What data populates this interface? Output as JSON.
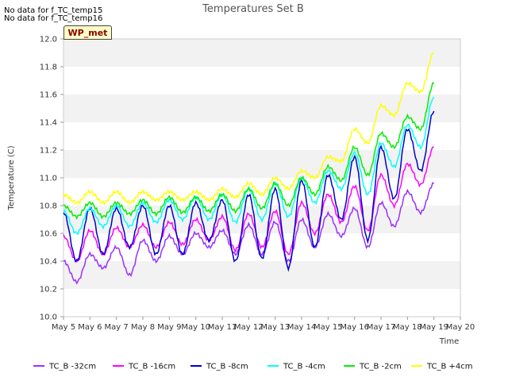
{
  "notes": [
    "No data for f_TC_temp15",
    "No data for f_TC_temp16"
  ],
  "badge": "WP_met",
  "chart_data": {
    "type": "line",
    "title": "Temperatures Set B",
    "xlabel": "Time",
    "ylabel": "Temperature (C)",
    "xlim": [
      "May 5",
      "May 20"
    ],
    "ylim": [
      10.0,
      12.0
    ],
    "xticks": [
      "May 5",
      "May 6",
      "May 7",
      "May 8",
      "May 9",
      "May 10",
      "May 11",
      "May 12",
      "May 13",
      "May 14",
      "May 15",
      "May 16",
      "May 17",
      "May 18",
      "May 19",
      "May 20"
    ],
    "yticks": [
      "10.0",
      "10.2",
      "10.4",
      "10.6",
      "10.8",
      "11.0",
      "11.2",
      "11.4",
      "11.6",
      "11.8",
      "12.0"
    ],
    "grid": "horizontal bands",
    "legend_position": "bottom",
    "x": [
      5.0,
      5.5,
      6.0,
      6.5,
      7.0,
      7.5,
      8.0,
      8.5,
      9.0,
      9.5,
      10.0,
      10.5,
      11.0,
      11.5,
      12.0,
      12.5,
      13.0,
      13.5,
      14.0,
      14.5,
      15.0,
      15.5,
      16.0,
      16.5,
      17.0,
      17.5,
      18.0,
      18.5,
      19.0
    ],
    "series": [
      {
        "name": "TC_B -32cm",
        "color": "#9b30ff",
        "values": [
          10.4,
          10.25,
          10.45,
          10.35,
          10.5,
          10.3,
          10.55,
          10.4,
          10.58,
          10.45,
          10.6,
          10.5,
          10.62,
          10.45,
          10.66,
          10.45,
          10.68,
          10.4,
          10.7,
          10.5,
          10.74,
          10.58,
          10.78,
          10.5,
          10.82,
          10.65,
          10.9,
          10.75,
          10.96
        ]
      },
      {
        "name": "TC_B -16cm",
        "color": "#ff00ff",
        "values": [
          10.58,
          10.4,
          10.62,
          10.45,
          10.64,
          10.5,
          10.66,
          10.5,
          10.68,
          10.52,
          10.7,
          10.55,
          10.72,
          10.48,
          10.74,
          10.5,
          10.76,
          10.45,
          10.82,
          10.6,
          10.88,
          10.68,
          10.94,
          10.62,
          11.02,
          10.8,
          11.1,
          10.95,
          11.22
        ]
      },
      {
        "name": "TC_B -8cm",
        "color": "#0000cd",
        "values": [
          10.75,
          10.4,
          10.78,
          10.45,
          10.78,
          10.5,
          10.8,
          10.45,
          10.8,
          10.45,
          10.82,
          10.55,
          10.84,
          10.4,
          10.88,
          10.42,
          10.92,
          10.35,
          10.98,
          10.5,
          11.02,
          10.7,
          11.15,
          10.55,
          11.22,
          10.85,
          11.35,
          11.05,
          11.48
        ]
      },
      {
        "name": "TC_B -4cm",
        "color": "#00ffff",
        "values": [
          10.76,
          10.6,
          10.78,
          10.65,
          10.8,
          10.65,
          10.82,
          10.68,
          10.84,
          10.7,
          10.86,
          10.7,
          10.88,
          10.68,
          10.92,
          10.7,
          10.96,
          10.72,
          11.0,
          10.82,
          11.05,
          10.92,
          11.18,
          10.88,
          11.25,
          11.08,
          11.38,
          11.22,
          11.58
        ]
      },
      {
        "name": "TC_B -2cm",
        "color": "#00ee00",
        "values": [
          10.8,
          10.72,
          10.82,
          10.72,
          10.82,
          10.74,
          10.84,
          10.74,
          10.86,
          10.75,
          10.86,
          10.76,
          10.88,
          10.76,
          10.92,
          10.78,
          10.96,
          10.8,
          11.0,
          10.88,
          11.08,
          10.98,
          11.22,
          11.02,
          11.32,
          11.22,
          11.44,
          11.35,
          11.68
        ]
      },
      {
        "name": "TC_B +4cm",
        "color": "#ffff00",
        "values": [
          10.88,
          10.82,
          10.9,
          10.82,
          10.9,
          10.82,
          10.9,
          10.84,
          10.9,
          10.84,
          10.9,
          10.84,
          10.92,
          10.86,
          10.96,
          10.88,
          11.0,
          10.92,
          11.05,
          11.0,
          11.15,
          11.12,
          11.35,
          11.25,
          11.52,
          11.45,
          11.68,
          11.62,
          11.9
        ]
      }
    ]
  }
}
